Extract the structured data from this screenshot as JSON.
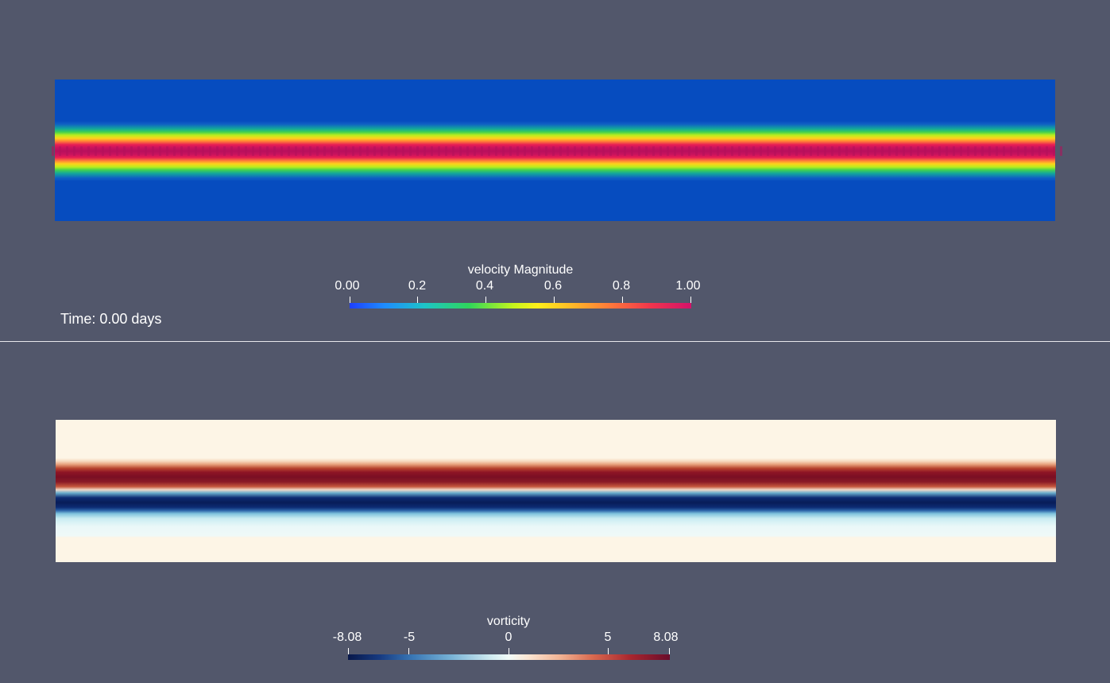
{
  "top_view": {
    "time_label": "Time: 0.00 days",
    "legend": {
      "title": "velocity Magnitude",
      "ticks": [
        "0.00",
        "0.2",
        "0.4",
        "0.6",
        "0.8",
        "1.00"
      ]
    }
  },
  "bottom_view": {
    "legend": {
      "title": "vorticity",
      "ticks": [
        "-8.08",
        "-5",
        "0",
        "5",
        "8.08"
      ]
    }
  },
  "colors": {
    "background": "#52576b",
    "divider": "#e8e8ec"
  }
}
